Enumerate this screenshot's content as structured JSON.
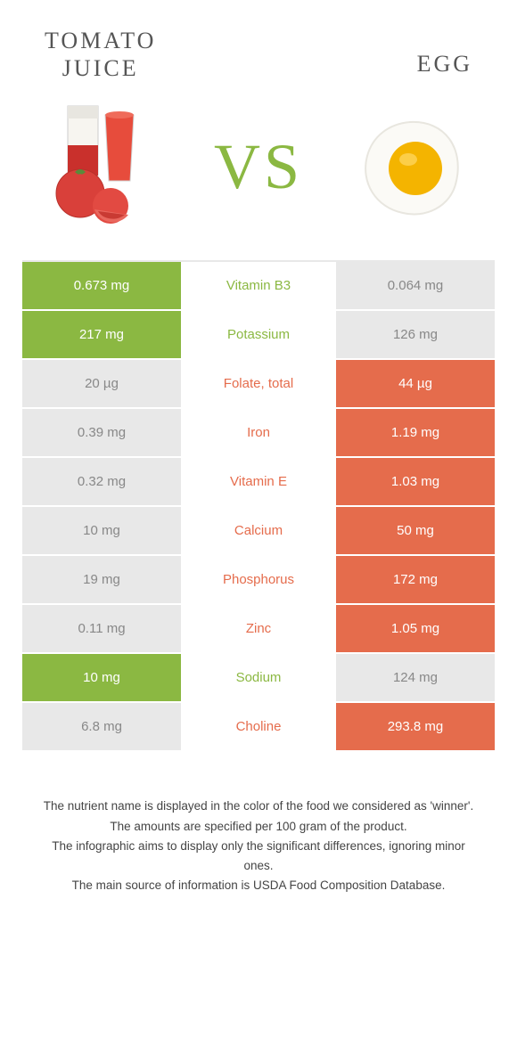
{
  "colors": {
    "green": "#8bb842",
    "orange": "#e56c4c",
    "light_gray": "#f3f3f3",
    "dim_side": "#e8e8e8"
  },
  "left_food": {
    "title_line1": "TOMATO",
    "title_line2": "JUICE"
  },
  "right_food": {
    "title": "EGG"
  },
  "vs_label": "VS",
  "rows": [
    {
      "left": "0.673 mg",
      "mid": "Vitamin B3",
      "right": "0.064 mg",
      "winner": "left"
    },
    {
      "left": "217 mg",
      "mid": "Potassium",
      "right": "126 mg",
      "winner": "left"
    },
    {
      "left": "20 µg",
      "mid": "Folate, total",
      "right": "44 µg",
      "winner": "right"
    },
    {
      "left": "0.39 mg",
      "mid": "Iron",
      "right": "1.19 mg",
      "winner": "right"
    },
    {
      "left": "0.32 mg",
      "mid": "Vitamin E",
      "right": "1.03 mg",
      "winner": "right"
    },
    {
      "left": "10 mg",
      "mid": "Calcium",
      "right": "50 mg",
      "winner": "right"
    },
    {
      "left": "19 mg",
      "mid": "Phosphorus",
      "right": "172 mg",
      "winner": "right"
    },
    {
      "left": "0.11 mg",
      "mid": "Zinc",
      "right": "1.05 mg",
      "winner": "right"
    },
    {
      "left": "10 mg",
      "mid": "Sodium",
      "right": "124 mg",
      "winner": "left"
    },
    {
      "left": "6.8 mg",
      "mid": "Choline",
      "right": "293.8 mg",
      "winner": "right"
    }
  ],
  "footer": {
    "l1": "The nutrient name is displayed in the color of the food we considered as 'winner'.",
    "l2": "The amounts are specified per 100 gram of the product.",
    "l3": "The infographic aims to display only the significant differences, ignoring minor ones.",
    "l4": "The main source of information is USDA Food Composition Database."
  }
}
